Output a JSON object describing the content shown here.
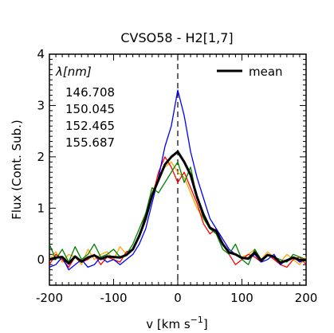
{
  "chart_data": {
    "type": "line",
    "title": "CVSO58 - H2[1,7]",
    "xlabel": "v [km s",
    "xlabel_sup": "−1",
    "xlabel_close": "]",
    "ylabel": "Flux (Cont. Sub.)",
    "xlim": [
      -200,
      200
    ],
    "ylim": [
      -0.5,
      4
    ],
    "xticks": [
      -200,
      -100,
      0,
      100,
      200
    ],
    "yticks": [
      0,
      1,
      2,
      3,
      4
    ],
    "xtick_labels": [
      "-200",
      "-100",
      "0",
      "100",
      "200"
    ],
    "ytick_labels": [
      "0",
      "1",
      "2",
      "3",
      "4"
    ],
    "legend_heading": "λ[nm]",
    "legend_position": "top-left",
    "mean_legend_label": "mean",
    "mean_legend_position": "top-right",
    "vline_x": 0,
    "x": [
      -200,
      -190,
      -180,
      -170,
      -160,
      -150,
      -140,
      -130,
      -120,
      -110,
      -100,
      -90,
      -80,
      -70,
      -60,
      -50,
      -40,
      -30,
      -20,
      -10,
      0,
      10,
      20,
      30,
      40,
      50,
      60,
      70,
      80,
      90,
      100,
      110,
      120,
      130,
      140,
      150,
      160,
      170,
      180,
      190,
      200
    ],
    "series": [
      {
        "name": "146.708",
        "color": "#ffa500",
        "values": [
          0.0,
          0.15,
          -0.05,
          0.1,
          0.05,
          -0.1,
          0.2,
          0.0,
          0.1,
          0.15,
          0.0,
          0.25,
          0.1,
          0.2,
          0.5,
          0.8,
          1.3,
          1.6,
          1.8,
          1.9,
          1.7,
          1.6,
          1.3,
          1.0,
          0.8,
          0.6,
          0.5,
          0.3,
          0.15,
          0.1,
          0.05,
          0.1,
          0.2,
          0.0,
          0.15,
          0.05,
          -0.05,
          0.1,
          0.0,
          -0.1,
          0.05
        ]
      },
      {
        "name": "150.045",
        "color": "#ff0000",
        "values": [
          -0.1,
          0.1,
          0.0,
          -0.15,
          0.05,
          -0.05,
          0.0,
          0.1,
          -0.1,
          0.05,
          0.0,
          -0.05,
          0.15,
          0.2,
          0.45,
          0.9,
          1.2,
          1.7,
          2.0,
          1.8,
          1.5,
          1.7,
          1.4,
          1.1,
          0.7,
          0.5,
          0.6,
          0.3,
          0.1,
          -0.1,
          0.0,
          0.1,
          0.05,
          -0.05,
          0.1,
          0.0,
          -0.1,
          -0.15,
          0.0,
          0.05,
          -0.1
        ]
      },
      {
        "name": "152.465",
        "color": "#0000ff",
        "values": [
          -0.15,
          -0.1,
          0.05,
          -0.2,
          -0.1,
          0.0,
          -0.15,
          -0.1,
          0.05,
          -0.05,
          0.0,
          -0.1,
          0.0,
          0.1,
          0.3,
          0.6,
          1.1,
          1.6,
          2.2,
          2.6,
          3.3,
          2.8,
          2.1,
          1.6,
          1.2,
          0.8,
          0.6,
          0.4,
          0.2,
          0.1,
          0.05,
          0.0,
          0.1,
          -0.05,
          0.0,
          0.1,
          -0.1,
          0.0,
          0.05,
          -0.05,
          0.0
        ]
      },
      {
        "name": "155.687",
        "color": "#008000",
        "values": [
          0.3,
          0.0,
          0.2,
          -0.05,
          0.25,
          0.0,
          0.1,
          0.3,
          0.05,
          0.1,
          0.2,
          0.05,
          0.1,
          0.3,
          0.6,
          0.9,
          1.4,
          1.3,
          1.5,
          1.7,
          1.9,
          1.5,
          1.8,
          1.2,
          0.8,
          0.6,
          0.5,
          0.2,
          0.1,
          0.3,
          0.0,
          -0.1,
          0.2,
          0.0,
          0.1,
          0.05,
          0.0,
          -0.05,
          0.1,
          0.05,
          0.0
        ]
      },
      {
        "name": "mean",
        "color": "#000000",
        "values": [
          0.0,
          0.04,
          0.05,
          -0.08,
          0.06,
          -0.04,
          0.04,
          0.08,
          0.01,
          0.06,
          0.05,
          0.04,
          0.09,
          0.2,
          0.46,
          0.8,
          1.25,
          1.55,
          1.85,
          2.0,
          2.1,
          1.9,
          1.65,
          1.22,
          0.88,
          0.62,
          0.55,
          0.3,
          0.14,
          0.1,
          0.03,
          0.02,
          0.14,
          -0.02,
          0.09,
          0.05,
          -0.06,
          -0.02,
          0.04,
          -0.01,
          -0.01
        ]
      }
    ]
  }
}
